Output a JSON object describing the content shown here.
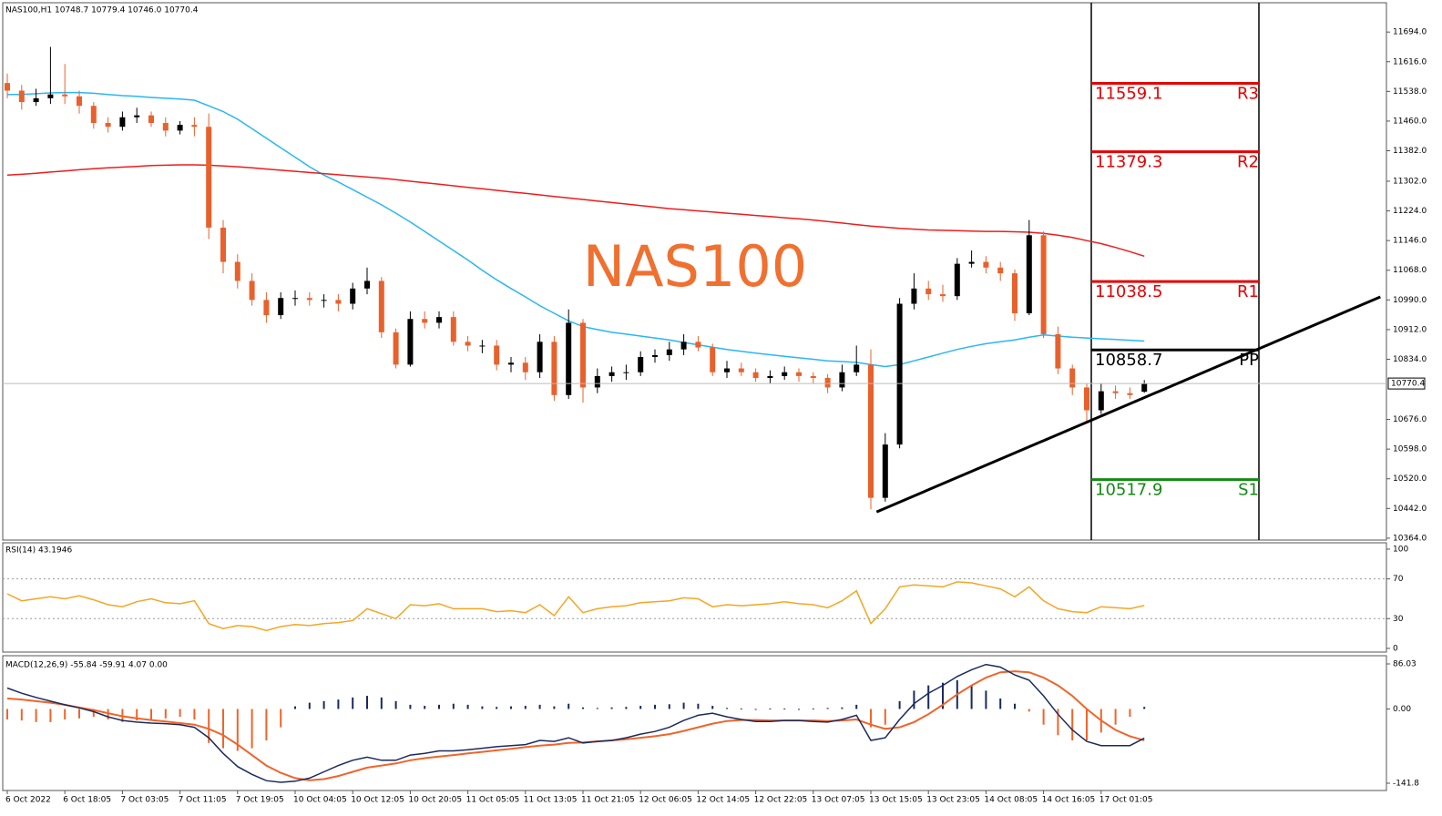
{
  "chart_data": [
    {
      "type": "candlestick",
      "title": "NAS100,H1  10748.7 10779.4 10746.0 10770.4",
      "watermark": "NAS100",
      "open": [
        11560,
        11540,
        11510,
        11520,
        11530,
        11525,
        11500,
        11455,
        11445,
        11470,
        11475,
        11455,
        11435,
        11450,
        11445,
        11180,
        11090,
        11040,
        10990,
        10950,
        10995,
        10995,
        10990,
        10990,
        10980,
        11020,
        11040,
        10905,
        10820,
        10940,
        10930,
        10945,
        10880,
        10870,
        10870,
        10820,
        10825,
        10800,
        10880,
        10740,
        10930,
        10760,
        10790,
        10800,
        10800,
        10840,
        10845,
        10860,
        10880,
        10865,
        10800,
        10810,
        10800,
        10785,
        10790,
        10800,
        10790,
        10785,
        10760,
        10800,
        10820,
        10470,
        10610,
        10980,
        11020,
        11005,
        11000,
        11085,
        11090,
        11075,
        11060,
        10955,
        11160,
        10900,
        10810,
        10760,
        10700,
        10750,
        10745,
        10748.7
      ],
      "high": [
        11585,
        11555,
        11545,
        11655,
        11610,
        11540,
        11510,
        11470,
        11485,
        11495,
        11485,
        11470,
        11460,
        11470,
        11480,
        11200,
        11110,
        11060,
        11010,
        11010,
        11015,
        11010,
        11005,
        11005,
        11035,
        11075,
        11050,
        10915,
        10960,
        10960,
        10960,
        10960,
        10895,
        10885,
        10885,
        10840,
        10840,
        10900,
        10895,
        10965,
        10940,
        10810,
        10815,
        10820,
        10855,
        10860,
        10880,
        10900,
        10895,
        10875,
        10830,
        10825,
        10810,
        10805,
        10815,
        10810,
        10800,
        10795,
        10820,
        10870,
        10860,
        10640,
        10995,
        11060,
        11040,
        11030,
        11100,
        11120,
        11105,
        11090,
        11070,
        11200,
        11170,
        10920,
        10820,
        10770,
        10770,
        10765,
        10760,
        10779.4
      ],
      "low": [
        11520,
        11490,
        11500,
        11505,
        11505,
        11480,
        11440,
        11430,
        11435,
        11455,
        11445,
        11420,
        11425,
        11420,
        11150,
        11060,
        11020,
        10975,
        10930,
        10940,
        10975,
        10975,
        10970,
        10960,
        10965,
        11005,
        10890,
        10810,
        10815,
        10915,
        10915,
        10870,
        10855,
        10850,
        10805,
        10800,
        10780,
        10785,
        10725,
        10730,
        10720,
        10745,
        10775,
        10780,
        10790,
        10825,
        10830,
        10845,
        10855,
        10790,
        10785,
        10790,
        10775,
        10770,
        10780,
        10775,
        10770,
        10745,
        10750,
        10790,
        10440,
        10460,
        10600,
        10965,
        10990,
        10985,
        10990,
        11075,
        11060,
        11040,
        10935,
        10950,
        10890,
        10795,
        10740,
        10670,
        10690,
        10730,
        10730,
        10746.0
      ],
      "close": [
        11540,
        11510,
        11520,
        11530,
        11525,
        11500,
        11455,
        11445,
        11470,
        11475,
        11455,
        11435,
        11450,
        11445,
        11180,
        11090,
        11040,
        10990,
        10950,
        10995,
        10995,
        10990,
        10990,
        10980,
        11020,
        11040,
        10905,
        10820,
        10940,
        10930,
        10945,
        10880,
        10870,
        10870,
        10820,
        10825,
        10800,
        10880,
        10740,
        10930,
        10760,
        10790,
        10800,
        10800,
        10840,
        10845,
        10860,
        10880,
        10865,
        10800,
        10810,
        10800,
        10785,
        10790,
        10800,
        10790,
        10785,
        10760,
        10800,
        10820,
        10470,
        10610,
        10980,
        11020,
        11005,
        11000,
        11085,
        11090,
        11075,
        11060,
        10955,
        11160,
        10900,
        10810,
        10760,
        10700,
        10750,
        10745,
        10740,
        10770.4
      ],
      "up_color": "#000000",
      "down_color": "#e8612c",
      "overlays": [
        {
          "color": "#29b6f6",
          "values": [
            11530,
            11530,
            11532,
            11534,
            11535,
            11535,
            11533,
            11530,
            11527,
            11525,
            11522,
            11520,
            11518,
            11515,
            11500,
            11485,
            11465,
            11440,
            11415,
            11390,
            11365,
            11340,
            11318,
            11300,
            11280,
            11260,
            11240,
            11218,
            11195,
            11170,
            11145,
            11120,
            11095,
            11068,
            11043,
            11020,
            10998,
            10975,
            10955,
            10935,
            10920,
            10912,
            10905,
            10900,
            10895,
            10890,
            10885,
            10878,
            10872,
            10866,
            10860,
            10855,
            10850,
            10846,
            10842,
            10838,
            10834,
            10830,
            10828,
            10826,
            10820,
            10815,
            10820,
            10830,
            10840,
            10850,
            10860,
            10868,
            10875,
            10880,
            10885,
            10892,
            10898,
            10895,
            10892,
            10890,
            10888,
            10886,
            10884,
            10882
          ]
        },
        {
          "color": "#ee1c1c",
          "values": [
            11318,
            11320,
            11323,
            11326,
            11329,
            11332,
            11335,
            11337,
            11339,
            11341,
            11343,
            11344,
            11345,
            11345,
            11344,
            11342,
            11340,
            11337,
            11334,
            11331,
            11328,
            11325,
            11322,
            11319,
            11316,
            11313,
            11310,
            11306,
            11302,
            11298,
            11294,
            11290,
            11286,
            11282,
            11278,
            11274,
            11270,
            11266,
            11262,
            11258,
            11254,
            11250,
            11246,
            11242,
            11238,
            11234,
            11230,
            11227,
            11224,
            11221,
            11218,
            11215,
            11212,
            11209,
            11206,
            11203,
            11200,
            11196,
            11192,
            11188,
            11184,
            11181,
            11178,
            11176,
            11174,
            11173,
            11172,
            11171,
            11170,
            11170,
            11169,
            11168,
            11165,
            11160,
            11154,
            11146,
            11138,
            11128,
            11117,
            11105
          ]
        }
      ],
      "levels": [
        {
          "name": "R3",
          "value": 11559.1,
          "color": "#e60000"
        },
        {
          "name": "R2",
          "value": 11379.3,
          "color": "#e60000"
        },
        {
          "name": "R1",
          "value": 11038.5,
          "color": "#e60000"
        },
        {
          "name": "PP",
          "value": 10858.7,
          "color": "#000000"
        },
        {
          "name": "S1",
          "value": 10517.9,
          "color": "#138a13"
        }
      ],
      "trendline": {
        "x": [
          60.4,
          95.4
        ],
        "y": [
          10433,
          10998
        ],
        "color": "#000000"
      },
      "ylim": [
        10359,
        11771
      ],
      "yticks": [
        {
          "value": 11694,
          "label": "11694.0"
        },
        {
          "value": 11616,
          "label": "11616.0"
        },
        {
          "value": 11538,
          "label": "11538.0"
        },
        {
          "value": 11460,
          "label": "11460.0"
        },
        {
          "value": 11382,
          "label": "11382.0"
        },
        {
          "value": 11302,
          "label": "11302.0"
        },
        {
          "value": 11224,
          "label": "11224.0"
        },
        {
          "value": 11146,
          "label": "11146.0"
        },
        {
          "value": 11068,
          "label": "11068.0"
        },
        {
          "value": 10990,
          "label": "10990.0"
        },
        {
          "value": 10912,
          "label": "10912.0"
        },
        {
          "value": 10834,
          "label": "10834.0"
        },
        {
          "value": 10676,
          "label": "10676.0"
        },
        {
          "value": 10598,
          "label": "10598.0"
        },
        {
          "value": 10520,
          "label": "10520.0"
        },
        {
          "value": 10442,
          "label": "10442.0"
        },
        {
          "value": 10364,
          "label": "10364.0"
        }
      ],
      "categories": [
        "6 Oct 2022",
        null,
        null,
        null,
        "6 Oct 18:05",
        null,
        null,
        null,
        "7 Oct 03:05",
        null,
        null,
        null,
        "7 Oct 11:05",
        null,
        null,
        null,
        "7 Oct 19:05",
        null,
        null,
        null,
        "10 Oct 04:05",
        null,
        null,
        null,
        "10 Oct 12:05",
        null,
        null,
        null,
        "10 Oct 20:05",
        null,
        null,
        null,
        "11 Oct 05:05",
        null,
        null,
        null,
        "11 Oct 13:05",
        null,
        null,
        null,
        "11 Oct 21:05",
        null,
        null,
        null,
        "12 Oct 06:05",
        null,
        null,
        null,
        "12 Oct 14:05",
        null,
        null,
        null,
        "12 Oct 22:05",
        null,
        null,
        null,
        "13 Oct 07:05",
        null,
        null,
        null,
        "13 Oct 15:05",
        null,
        null,
        null,
        "13 Oct 23:05",
        null,
        null,
        null,
        "14 Oct 08:05",
        null,
        null,
        null,
        "14 Oct 16:05",
        null,
        null,
        null,
        "17 Oct 01:05",
        null,
        null,
        null
      ]
    },
    {
      "type": "line",
      "title": "RSI(14) 43.1946",
      "values": [
        55,
        48,
        50,
        52,
        50,
        53,
        49,
        44,
        42,
        47,
        50,
        46,
        45,
        48,
        25,
        20,
        23,
        22,
        18,
        22,
        24,
        23,
        25,
        26,
        28,
        40,
        35,
        30,
        44,
        43,
        45,
        40,
        40,
        40,
        37,
        38,
        36,
        44,
        33,
        52,
        36,
        40,
        42,
        43,
        46,
        47,
        48,
        51,
        50,
        42,
        44,
        43,
        44,
        45,
        47,
        45,
        44,
        41,
        48,
        58,
        25,
        40,
        62,
        64,
        63,
        62,
        67,
        66,
        63,
        60,
        52,
        62,
        48,
        40,
        37,
        36,
        42,
        41,
        40,
        43.1946
      ],
      "color": "#f5a623",
      "ylim": [
        -3.7,
        106.4
      ],
      "yticks": [
        100,
        70,
        30,
        0
      ],
      "levels": [
        70,
        30
      ]
    },
    {
      "type": "macd",
      "title": "MACD(12,26,9) -55.84 -59.91 4.07 0.00",
      "histogram": [
        -20,
        -22,
        -25,
        -25,
        -20,
        -18,
        -15,
        -20,
        -25,
        -22,
        -20,
        -18,
        -15,
        -20,
        -65,
        -75,
        -80,
        -75,
        -60,
        -35,
        5,
        12,
        15,
        18,
        22,
        25,
        22,
        15,
        8,
        6,
        8,
        10,
        8,
        5,
        4,
        5,
        6,
        8,
        5,
        10,
        3,
        2,
        3,
        4,
        6,
        8,
        9,
        12,
        10,
        6,
        2,
        1,
        0,
        1,
        1,
        0,
        1,
        2,
        3,
        8,
        -35,
        -30,
        15,
        35,
        45,
        50,
        55,
        45,
        35,
        20,
        10,
        -5,
        -30,
        -50,
        -60,
        -60,
        -45,
        -30,
        -15,
        4.07
      ],
      "macd": [
        40,
        30,
        22,
        15,
        8,
        2,
        -5,
        -15,
        -22,
        -25,
        -27,
        -28,
        -30,
        -35,
        -55,
        -85,
        -110,
        -125,
        -137,
        -140,
        -138,
        -132,
        -120,
        -108,
        -98,
        -92,
        -98,
        -98,
        -88,
        -85,
        -80,
        -80,
        -78,
        -75,
        -72,
        -70,
        -68,
        -60,
        -62,
        -55,
        -65,
        -62,
        -60,
        -55,
        -48,
        -43,
        -35,
        -22,
        -12,
        -8,
        -15,
        -20,
        -24,
        -24,
        -22,
        -22,
        -24,
        -25,
        -20,
        -12,
        -60,
        -55,
        -20,
        10,
        30,
        45,
        62,
        75,
        85,
        80,
        65,
        55,
        25,
        -10,
        -40,
        -62,
        -70,
        -70,
        -70,
        -55.84
      ],
      "signal": [
        20,
        18,
        15,
        12,
        8,
        3,
        -2,
        -8,
        -14,
        -18,
        -21,
        -24,
        -27,
        -30,
        -38,
        -50,
        -68,
        -88,
        -108,
        -122,
        -132,
        -136,
        -134,
        -128,
        -120,
        -112,
        -108,
        -104,
        -98,
        -94,
        -91,
        -88,
        -85,
        -82,
        -79,
        -76,
        -73,
        -70,
        -68,
        -65,
        -64,
        -62,
        -60,
        -58,
        -55,
        -52,
        -48,
        -42,
        -35,
        -28,
        -23,
        -21,
        -21,
        -22,
        -22,
        -22,
        -22,
        -23,
        -22,
        -20,
        -30,
        -38,
        -35,
        -25,
        -10,
        8,
        28,
        45,
        60,
        70,
        72,
        70,
        60,
        45,
        25,
        0,
        -22,
        -40,
        -52,
        -59.91
      ],
      "up_color": "#1a2a5e",
      "down_color": "#f0642a",
      "macd_color": "#1a2a5e",
      "signal_color": "#f0642a",
      "ylim": [
        -155.7,
        101.7
      ],
      "yticks": [
        86.03,
        {
          "value": 0,
          "label": "0.00"
        },
        -141.8
      ]
    }
  ]
}
